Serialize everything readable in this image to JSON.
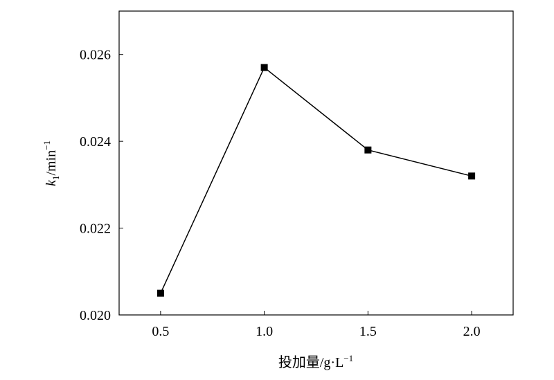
{
  "chart_data": {
    "type": "line",
    "xlabel": {
      "text": "投加量/g·L",
      "superscript": "−1"
    },
    "ylabel": {
      "symbol": "k",
      "subscript": "1",
      "unit": "/min",
      "superscript": "−1"
    },
    "x": [
      0.5,
      1,
      1.5,
      2
    ],
    "series": [
      {
        "color": "#000000",
        "values": [
          0.0205,
          0.0257,
          0.0238,
          0.0232
        ]
      }
    ],
    "xlim": [
      0.3,
      2.2
    ],
    "xticks": [
      0.5,
      {
        "value": 1,
        "label": "1.0"
      },
      1.5,
      {
        "value": 2,
        "label": "2.0"
      }
    ],
    "ylim": [
      0.02,
      0.027
    ],
    "yticks": [
      {
        "value": 0.02,
        "label": "0.020"
      },
      {
        "value": 0.022,
        "label": "0.022"
      },
      {
        "value": 0.024,
        "label": "0.024"
      },
      {
        "value": 0.026,
        "label": "0.026"
      }
    ],
    "marker": "square"
  }
}
